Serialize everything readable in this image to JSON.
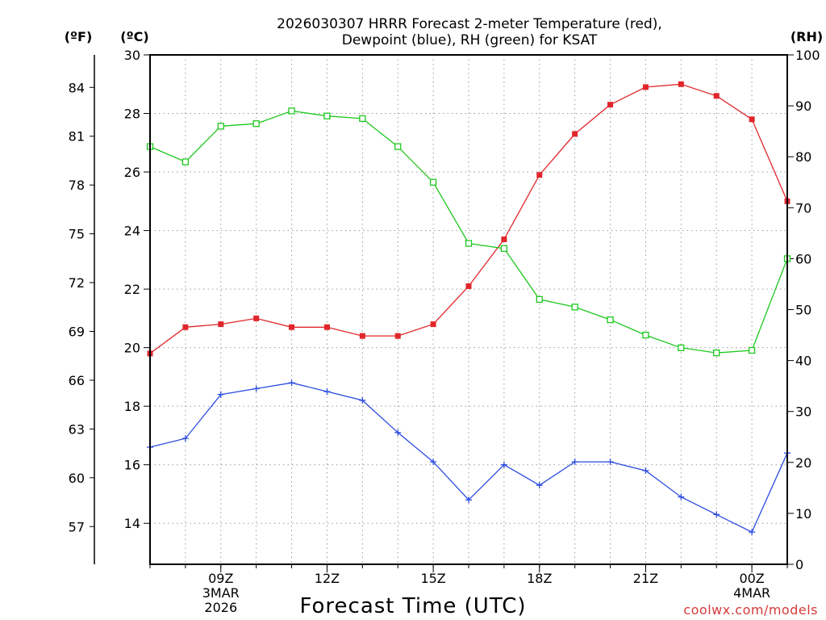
{
  "chart_data": {
    "type": "line",
    "title": [
      "2026030307 HRRR Forecast 2-meter Temperature (red),",
      "Dewpoint (blue), RH (green) for KSAT"
    ],
    "xlabel": "Forecast Time (UTC)",
    "units": {
      "fahrenheit": "(ºF)",
      "celsius": "(ºC)",
      "rh": "(RH)"
    },
    "credit": "coolwx.com/models",
    "x": [
      7,
      8,
      9,
      10,
      11,
      12,
      13,
      14,
      15,
      16,
      17,
      18,
      19,
      20,
      21,
      22,
      23,
      24,
      25
    ],
    "xlim": [
      7,
      25
    ],
    "x_ticks": [
      {
        "x": 9,
        "lines": [
          "09Z",
          "3MAR",
          "2026"
        ]
      },
      {
        "x": 12,
        "lines": [
          "12Z"
        ]
      },
      {
        "x": 15,
        "lines": [
          "15Z"
        ]
      },
      {
        "x": 18,
        "lines": [
          "18Z"
        ]
      },
      {
        "x": 21,
        "lines": [
          "21Z"
        ]
      },
      {
        "x": 24,
        "lines": [
          "00Z",
          "4MAR"
        ]
      }
    ],
    "ylim_c": [
      12.6,
      30
    ],
    "celsius_ticks": [
      14,
      16,
      18,
      20,
      22,
      24,
      26,
      28,
      30
    ],
    "fahrenheit_ticks": [
      57,
      60,
      63,
      66,
      69,
      72,
      75,
      78,
      81,
      84
    ],
    "ylim_rh": [
      0,
      100
    ],
    "rh_ticks": [
      0,
      10,
      20,
      30,
      40,
      50,
      60,
      70,
      80,
      90,
      100
    ],
    "series": [
      {
        "name": "Temperature",
        "axis": "celsius",
        "color": "#e0262b",
        "marker": "filled-square",
        "values": [
          19.8,
          20.7,
          20.8,
          21.0,
          20.7,
          20.7,
          20.4,
          20.4,
          20.8,
          22.1,
          23.7,
          25.9,
          27.3,
          28.3,
          28.9,
          29.0,
          28.6,
          27.8,
          25.0
        ]
      },
      {
        "name": "Dewpoint",
        "axis": "celsius",
        "color": "#2b4ce0",
        "marker": "plus",
        "values": [
          16.6,
          16.9,
          18.4,
          18.6,
          18.8,
          18.5,
          18.2,
          17.1,
          16.1,
          14.8,
          16.0,
          15.3,
          16.1,
          16.1,
          15.8,
          14.9,
          14.3,
          13.7,
          16.4
        ]
      },
      {
        "name": "RH",
        "axis": "rh",
        "color": "#1ec81e",
        "marker": "open-square",
        "values": [
          82,
          79,
          86,
          86.5,
          89,
          88,
          87.5,
          82,
          75,
          63,
          62,
          52,
          50.5,
          48,
          45,
          42.5,
          41.5,
          42,
          60
        ]
      }
    ]
  }
}
